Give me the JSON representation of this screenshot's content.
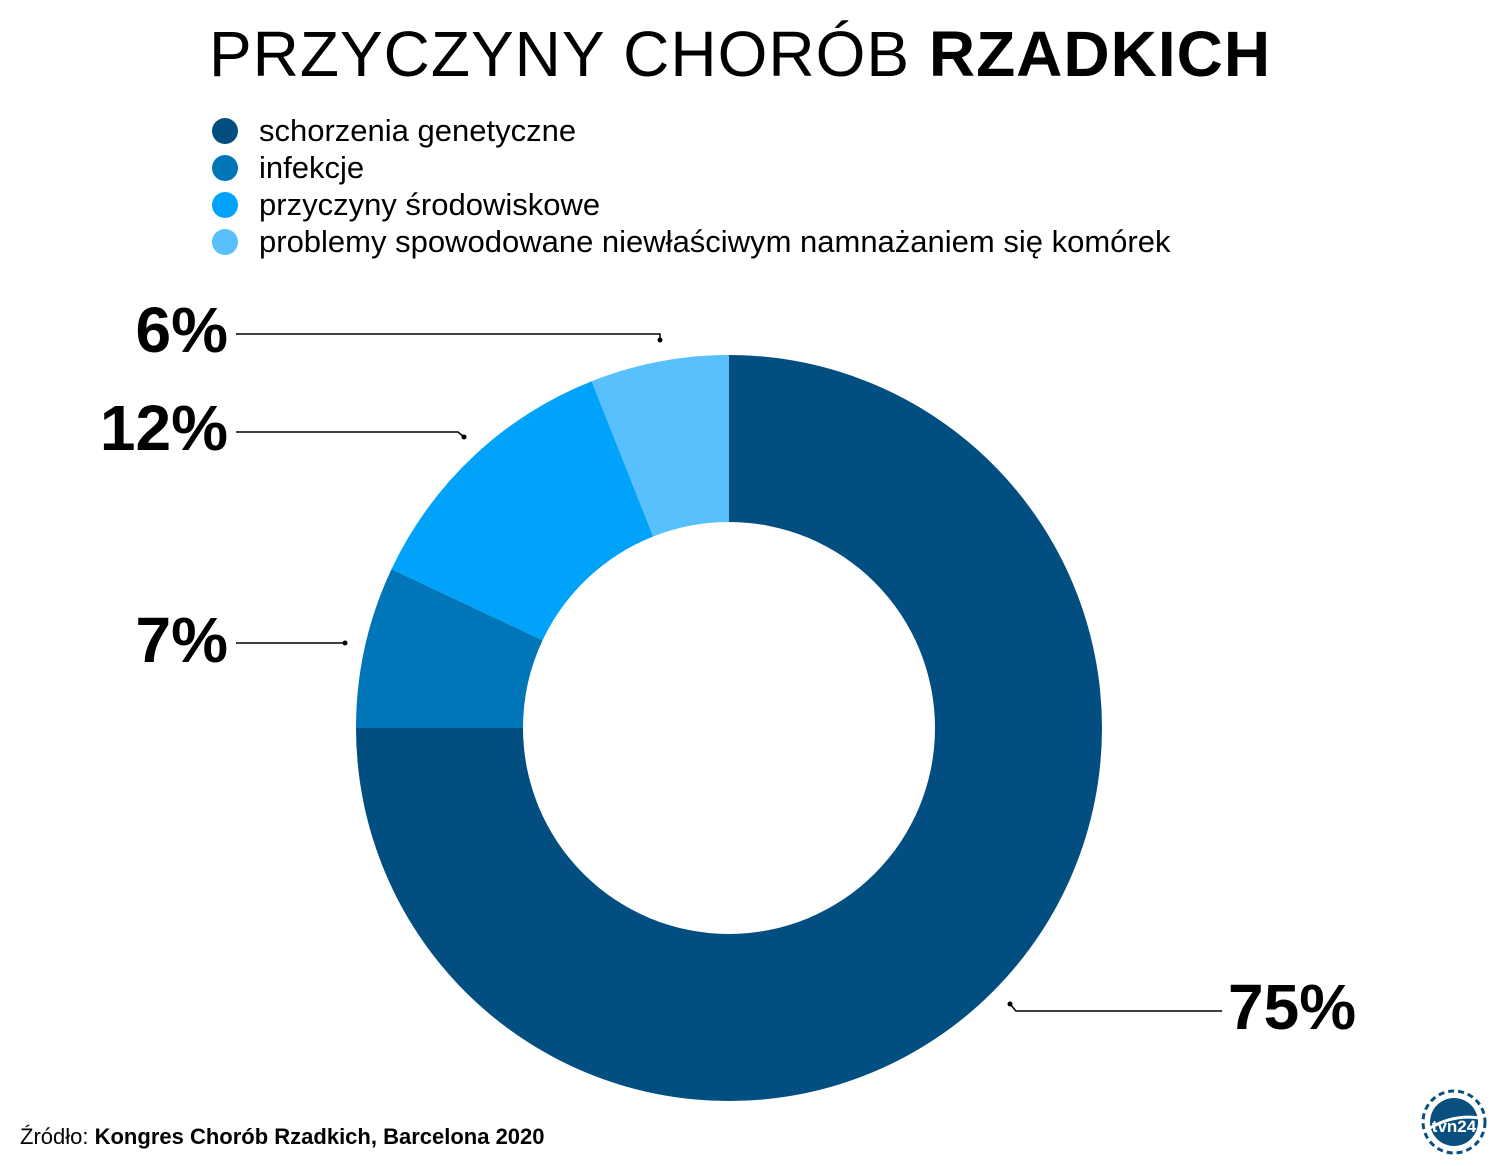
{
  "title": {
    "light": "PRZYCZYNY CHORÓB",
    "bold": "RZADKICH"
  },
  "legend": [
    {
      "label": "schorzenia genetyczne",
      "color": "#034e80"
    },
    {
      "label": "infekcje",
      "color": "#0076b9"
    },
    {
      "label": "przyczyny środowiskowe",
      "color": "#00a2fa"
    },
    {
      "label": "problemy spowodowane niewłaściwym namnażaniem się komórek",
      "color": "#57c0fd"
    }
  ],
  "chart_data": {
    "type": "donut",
    "title": "PRZYCZYNY CHORÓB RZADKICH",
    "series": [
      {
        "name": "schorzenia genetyczne",
        "value": 75,
        "label": "75%",
        "color": "#034e80"
      },
      {
        "name": "infekcje",
        "value": 7,
        "label": "7%",
        "color": "#0076b9"
      },
      {
        "name": "przyczyny środowiskowe",
        "value": 12,
        "label": "12%",
        "color": "#00a2fa"
      },
      {
        "name": "problemy spowodowane niewłaściwym namnażaniem się komórek",
        "value": 6,
        "label": "6%",
        "color": "#57c0fd"
      }
    ],
    "legend_position": "top"
  },
  "source": {
    "prefix": "Źródło:",
    "text": "Kongres Chorób Rzadkich, Barcelona 2020"
  },
  "logo": {
    "text": "tvn24",
    "icon": "tvn24-logo-icon"
  }
}
